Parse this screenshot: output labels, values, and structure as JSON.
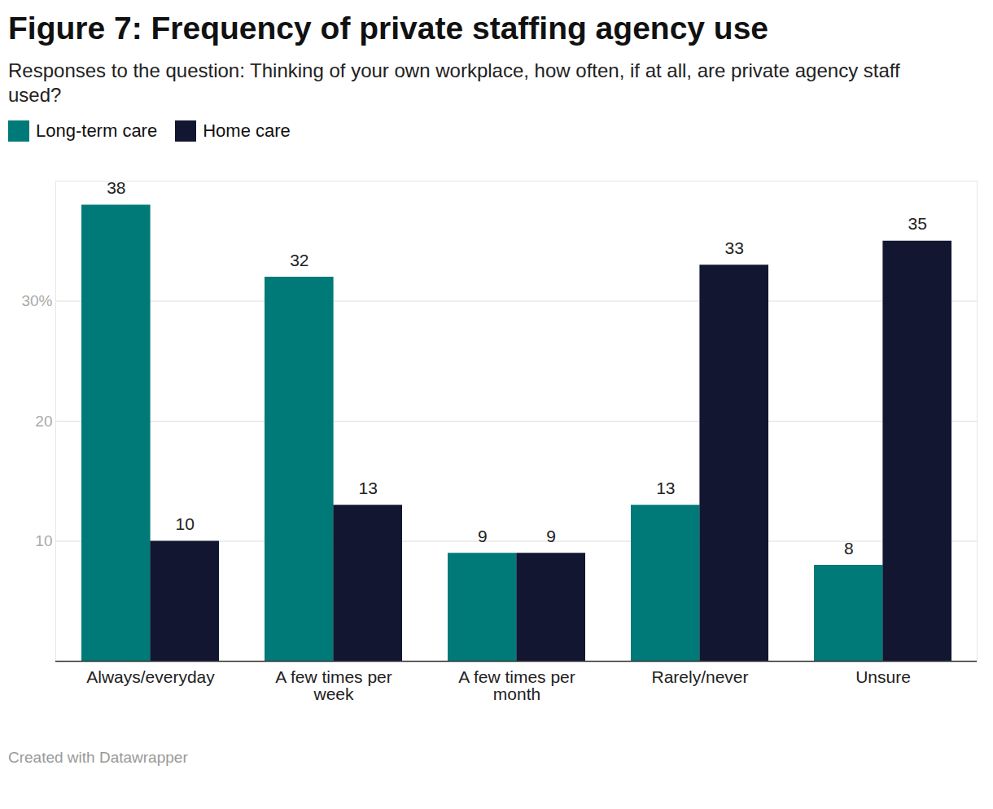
{
  "chart_data": {
    "type": "bar",
    "title": "Figure 7: Frequency of private staffing agency use",
    "subtitle": "Responses to the question: Thinking of your own workplace, how often, if at all, are private agency staff used?",
    "caption": "Created with Datawrapper",
    "categories": [
      "Always/everyday",
      "A few times per week",
      "A few times per month",
      "Rarely/never",
      "Unsure"
    ],
    "series": [
      {
        "name": "Long-term care",
        "color": "#007a78",
        "values": [
          38,
          32,
          9,
          13,
          8
        ]
      },
      {
        "name": "Home care",
        "color": "#131631",
        "values": [
          10,
          13,
          9,
          33,
          35
        ]
      }
    ],
    "ylim": [
      0,
      40
    ],
    "yticks": [
      10,
      20,
      {
        "value": 30,
        "label": "30%"
      }
    ],
    "grid": true,
    "legend": "top-left",
    "data_labels": true
  }
}
